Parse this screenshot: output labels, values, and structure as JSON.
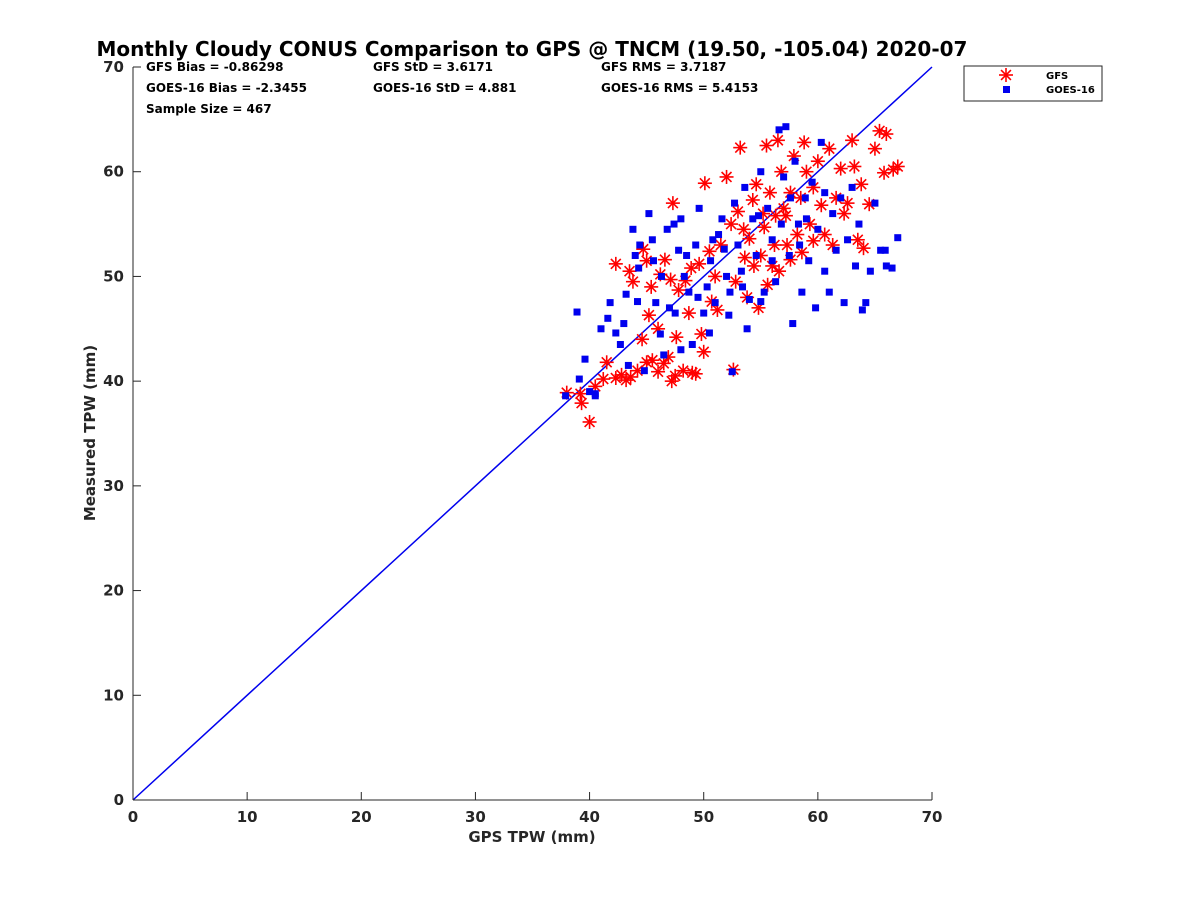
{
  "chart_data": {
    "type": "scatter",
    "title": "Monthly Cloudy CONUS Comparison to GPS @ TNCM (19.50, -105.04) 2020-07",
    "xlabel": "GPS TPW (mm)",
    "ylabel": "Measured TPW (mm)",
    "xlim": [
      0,
      70
    ],
    "ylim": [
      0,
      70
    ],
    "xticks": [
      "0",
      "10",
      "20",
      "30",
      "40",
      "50",
      "60",
      "70"
    ],
    "yticks": [
      "0",
      "10",
      "20",
      "30",
      "40",
      "50",
      "60",
      "70"
    ],
    "grid": false,
    "legend_position": "outside-top-right",
    "reference_line": {
      "name": "1:1 line",
      "x": [
        0,
        70
      ],
      "y": [
        0,
        70
      ],
      "color": "#0000ee"
    },
    "stats": {
      "gfs_bias": "GFS Bias = -0.86298",
      "gfs_std": "GFS StD = 3.6171",
      "gfs_rms": "GFS RMS = 3.7187",
      "goes_bias": "GOES-16 Bias = -2.3455",
      "goes_std": "GOES-16 StD = 4.881",
      "goes_rms": "GOES-16 RMS = 5.4153",
      "sample_size": "Sample Size = 467"
    },
    "series": [
      {
        "name": "GFS",
        "marker": "asterisk",
        "color": "#ff0000",
        "points": [
          [
            38.0,
            38.9
          ],
          [
            39.2,
            38.8
          ],
          [
            39.3,
            37.9
          ],
          [
            40.0,
            36.1
          ],
          [
            40.5,
            39.5
          ],
          [
            41.2,
            40.2
          ],
          [
            41.5,
            41.8
          ],
          [
            42.3,
            40.3
          ],
          [
            42.8,
            40.6
          ],
          [
            43.2,
            40.1
          ],
          [
            43.6,
            40.4
          ],
          [
            44.2,
            41.0
          ],
          [
            45.0,
            41.8
          ],
          [
            45.5,
            42.0
          ],
          [
            46.0,
            40.9
          ],
          [
            46.5,
            41.7
          ],
          [
            46.9,
            42.3
          ],
          [
            47.2,
            40.0
          ],
          [
            47.5,
            40.5
          ],
          [
            48.2,
            41.0
          ],
          [
            49.0,
            40.8
          ],
          [
            49.3,
            40.7
          ],
          [
            50.0,
            42.8
          ],
          [
            52.6,
            41.1
          ],
          [
            42.3,
            51.2
          ],
          [
            43.5,
            50.5
          ],
          [
            43.8,
            49.5
          ],
          [
            44.7,
            52.6
          ],
          [
            45.0,
            51.5
          ],
          [
            45.4,
            49.0
          ],
          [
            46.2,
            50.2
          ],
          [
            46.6,
            51.6
          ],
          [
            47.1,
            49.7
          ],
          [
            47.8,
            48.7
          ],
          [
            47.3,
            57.0
          ],
          [
            48.4,
            49.6
          ],
          [
            48.9,
            50.8
          ],
          [
            49.6,
            51.2
          ],
          [
            50.1,
            58.9
          ],
          [
            50.5,
            52.4
          ],
          [
            51.0,
            50.0
          ],
          [
            51.5,
            53.0
          ],
          [
            52.0,
            59.5
          ],
          [
            52.4,
            55.0
          ],
          [
            53.0,
            56.2
          ],
          [
            53.2,
            62.3
          ],
          [
            53.6,
            51.8
          ],
          [
            54.0,
            53.6
          ],
          [
            54.3,
            57.3
          ],
          [
            54.6,
            58.8
          ],
          [
            55.0,
            52.0
          ],
          [
            55.3,
            54.7
          ],
          [
            55.5,
            62.5
          ],
          [
            55.8,
            58.0
          ],
          [
            56.0,
            51.0
          ],
          [
            56.3,
            55.8
          ],
          [
            56.5,
            63.0
          ],
          [
            56.8,
            60.0
          ],
          [
            57.0,
            56.5
          ],
          [
            57.3,
            53.0
          ],
          [
            57.6,
            58.0
          ],
          [
            57.9,
            61.5
          ],
          [
            58.2,
            54.0
          ],
          [
            58.5,
            57.5
          ],
          [
            58.8,
            62.8
          ],
          [
            59.0,
            60.0
          ],
          [
            59.3,
            55.0
          ],
          [
            59.6,
            58.5
          ],
          [
            60.0,
            61.0
          ],
          [
            60.3,
            56.8
          ],
          [
            60.6,
            54.0
          ],
          [
            61.0,
            62.2
          ],
          [
            61.3,
            53.0
          ],
          [
            61.6,
            57.5
          ],
          [
            62.0,
            60.3
          ],
          [
            62.3,
            56.0
          ],
          [
            62.6,
            57.0
          ],
          [
            63.0,
            63.0
          ],
          [
            63.2,
            60.5
          ],
          [
            63.5,
            53.5
          ],
          [
            63.8,
            58.8
          ],
          [
            64.0,
            52.7
          ],
          [
            64.5,
            56.9
          ],
          [
            65.0,
            62.2
          ],
          [
            65.4,
            63.9
          ],
          [
            65.8,
            59.9
          ],
          [
            66.0,
            63.6
          ],
          [
            66.6,
            60.2
          ],
          [
            67.0,
            60.5
          ],
          [
            52.8,
            49.5
          ],
          [
            53.8,
            48.0
          ],
          [
            54.8,
            47.0
          ],
          [
            55.6,
            49.2
          ],
          [
            56.6,
            50.5
          ],
          [
            57.6,
            51.6
          ],
          [
            58.6,
            52.3
          ],
          [
            59.6,
            53.4
          ],
          [
            50.7,
            47.6
          ],
          [
            51.2,
            46.8
          ],
          [
            49.8,
            44.5
          ],
          [
            48.7,
            46.5
          ],
          [
            46.0,
            45.0
          ],
          [
            45.2,
            46.3
          ],
          [
            44.6,
            44.0
          ],
          [
            47.6,
            44.2
          ],
          [
            53.5,
            54.5
          ],
          [
            54.4,
            51.0
          ],
          [
            55.2,
            56.0
          ],
          [
            56.2,
            53.0
          ],
          [
            57.2,
            55.8
          ]
        ]
      },
      {
        "name": "GOES-16",
        "marker": "square",
        "color": "#0000ee",
        "points": [
          [
            37.9,
            38.6
          ],
          [
            38.9,
            46.6
          ],
          [
            39.1,
            40.2
          ],
          [
            39.6,
            42.1
          ],
          [
            40.0,
            39.0
          ],
          [
            40.5,
            38.8
          ],
          [
            41.0,
            45.0
          ],
          [
            41.6,
            46.0
          ],
          [
            41.8,
            47.5
          ],
          [
            42.3,
            44.6
          ],
          [
            42.7,
            43.5
          ],
          [
            43.2,
            48.3
          ],
          [
            43.4,
            41.5
          ],
          [
            43.8,
            54.5
          ],
          [
            44.0,
            52.0
          ],
          [
            44.4,
            53.0
          ],
          [
            44.8,
            41.0
          ],
          [
            45.2,
            56.0
          ],
          [
            45.5,
            53.5
          ],
          [
            45.8,
            47.5
          ],
          [
            46.2,
            44.5
          ],
          [
            46.5,
            42.5
          ],
          [
            46.8,
            54.5
          ],
          [
            47.0,
            47.0
          ],
          [
            47.4,
            55.0
          ],
          [
            47.8,
            52.5
          ],
          [
            48.0,
            43.0
          ],
          [
            48.3,
            50.0
          ],
          [
            48.7,
            48.5
          ],
          [
            49.0,
            43.5
          ],
          [
            49.3,
            53.0
          ],
          [
            49.6,
            56.5
          ],
          [
            50.0,
            46.5
          ],
          [
            50.3,
            49.0
          ],
          [
            50.6,
            51.5
          ],
          [
            51.0,
            47.5
          ],
          [
            51.3,
            54.0
          ],
          [
            51.6,
            55.5
          ],
          [
            52.0,
            50.0
          ],
          [
            52.3,
            48.5
          ],
          [
            52.5,
            40.9
          ],
          [
            52.7,
            57.0
          ],
          [
            53.0,
            53.0
          ],
          [
            53.3,
            50.5
          ],
          [
            53.6,
            58.5
          ],
          [
            54.0,
            47.8
          ],
          [
            54.3,
            55.5
          ],
          [
            54.6,
            52.0
          ],
          [
            55.0,
            60.0
          ],
          [
            55.3,
            48.5
          ],
          [
            55.6,
            56.5
          ],
          [
            56.0,
            53.5
          ],
          [
            56.3,
            49.5
          ],
          [
            56.6,
            64.0
          ],
          [
            57.0,
            59.5
          ],
          [
            57.2,
            64.3
          ],
          [
            57.5,
            52.0
          ],
          [
            57.8,
            45.5
          ],
          [
            58.0,
            61.0
          ],
          [
            58.3,
            55.0
          ],
          [
            58.6,
            48.5
          ],
          [
            58.9,
            57.5
          ],
          [
            59.2,
            51.5
          ],
          [
            59.5,
            59.0
          ],
          [
            59.8,
            47.0
          ],
          [
            60.0,
            54.5
          ],
          [
            60.3,
            62.8
          ],
          [
            60.6,
            50.5
          ],
          [
            61.0,
            48.5
          ],
          [
            61.3,
            56.0
          ],
          [
            61.6,
            52.5
          ],
          [
            62.0,
            57.5
          ],
          [
            62.3,
            47.5
          ],
          [
            62.6,
            53.5
          ],
          [
            63.0,
            58.5
          ],
          [
            63.3,
            51.0
          ],
          [
            63.6,
            55.0
          ],
          [
            63.9,
            46.8
          ],
          [
            64.2,
            47.5
          ],
          [
            64.6,
            50.5
          ],
          [
            65.0,
            57.0
          ],
          [
            65.5,
            52.5
          ],
          [
            66.0,
            51.0
          ],
          [
            66.5,
            50.8
          ],
          [
            67.0,
            53.7
          ],
          [
            65.9,
            52.5
          ],
          [
            44.3,
            50.8
          ],
          [
            45.6,
            51.5
          ],
          [
            46.3,
            50.0
          ],
          [
            48.5,
            52.0
          ],
          [
            50.8,
            53.5
          ],
          [
            51.8,
            52.6
          ],
          [
            53.4,
            49.0
          ],
          [
            54.8,
            55.8
          ],
          [
            56.0,
            51.5
          ],
          [
            56.8,
            55.0
          ],
          [
            57.6,
            57.5
          ],
          [
            58.4,
            53.0
          ],
          [
            59.0,
            55.5
          ],
          [
            60.6,
            58.0
          ],
          [
            47.5,
            46.5
          ],
          [
            49.5,
            48.0
          ],
          [
            50.5,
            44.6
          ],
          [
            52.2,
            46.3
          ],
          [
            53.8,
            45.0
          ],
          [
            55.0,
            47.6
          ],
          [
            43.0,
            45.5
          ],
          [
            44.2,
            47.6
          ],
          [
            40.5,
            38.6
          ],
          [
            48.0,
            55.5
          ]
        ]
      }
    ]
  }
}
